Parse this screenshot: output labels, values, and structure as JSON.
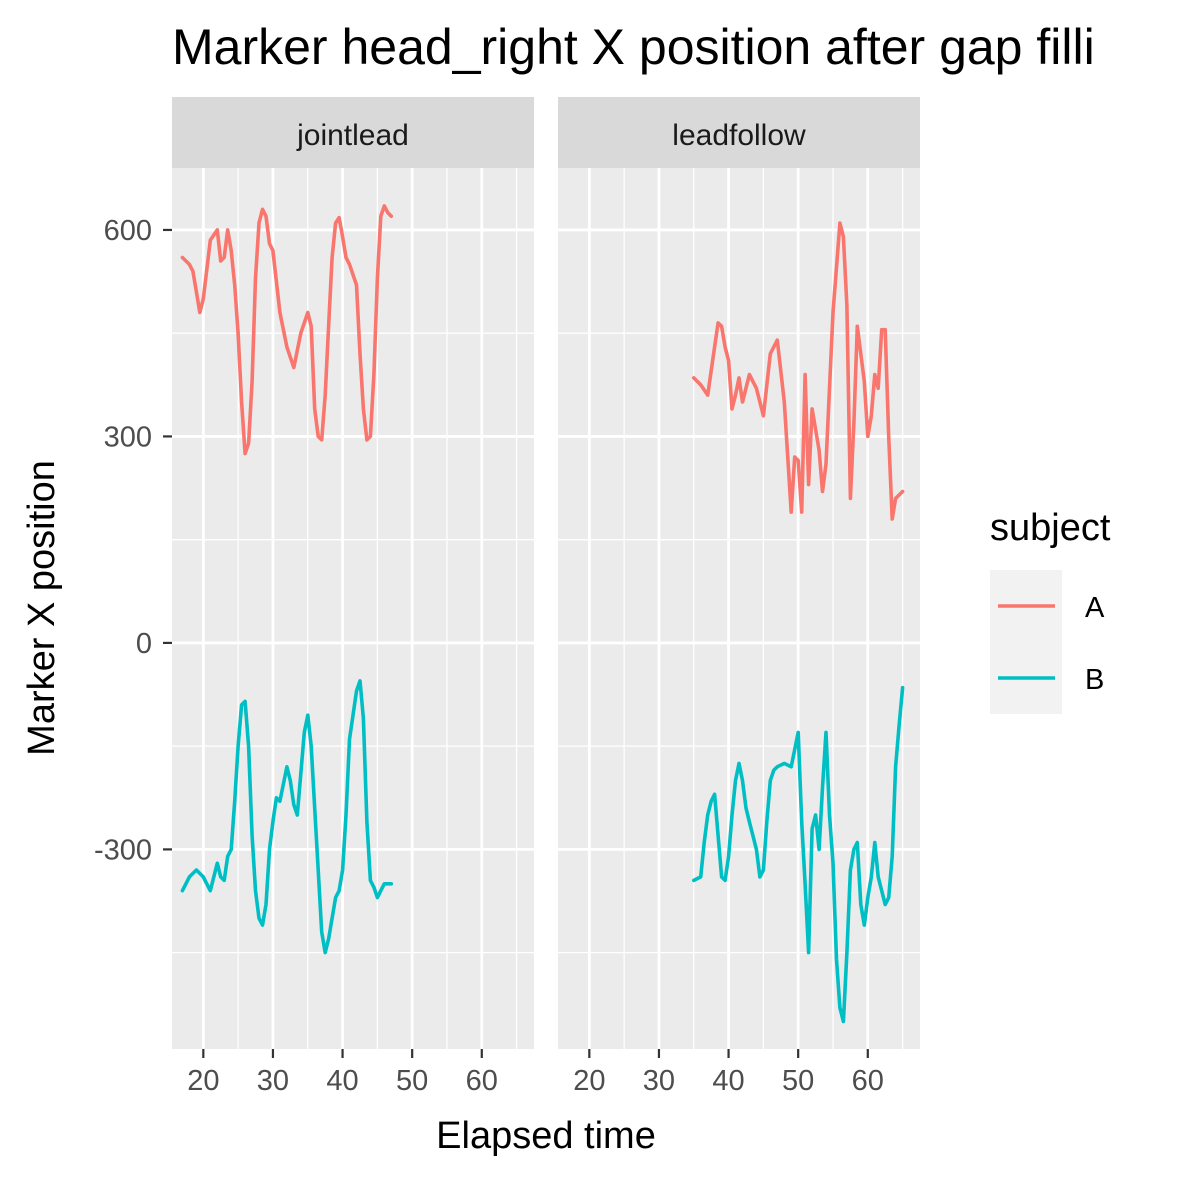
{
  "chart_data": {
    "type": "line",
    "title": "Marker head_right X position after gap filli",
    "xlabel": "Elapsed time",
    "ylabel": "Marker X position",
    "x_ticks": [
      20,
      30,
      40,
      50,
      60
    ],
    "y_ticks": [
      -300,
      0,
      300,
      600
    ],
    "xlim": [
      15.5,
      67.5
    ],
    "ylim": [
      -590,
      690
    ],
    "grid": true,
    "legend": {
      "title": "subject",
      "position": "right",
      "items": [
        {
          "label": "A",
          "color": "#F8766D"
        },
        {
          "label": "B",
          "color": "#00BFC4"
        }
      ]
    },
    "panels": [
      {
        "label": "jointlead",
        "series": [
          {
            "name": "A",
            "color": "#F8766D",
            "x": [
              17,
              18,
              18.5,
              19,
              19.5,
              20,
              21,
              22,
              22.5,
              23,
              23.5,
              24,
              24.5,
              25,
              25.5,
              26,
              26.5,
              27,
              27.5,
              28,
              28.5,
              29,
              29.5,
              30,
              31,
              32,
              33,
              34,
              35,
              35.5,
              36,
              36.5,
              37,
              37.5,
              38,
              38.5,
              39,
              39.5,
              40,
              40.5,
              41,
              42,
              42.5,
              43,
              43.5,
              44,
              44.5,
              45,
              45.5,
              46,
              46.5,
              47
            ],
            "y": [
              560,
              550,
              540,
              510,
              480,
              500,
              585,
              600,
              555,
              560,
              600,
              570,
              520,
              450,
              350,
              275,
              290,
              380,
              530,
              610,
              630,
              620,
              580,
              570,
              480,
              430,
              400,
              450,
              480,
              460,
              340,
              300,
              295,
              360,
              460,
              560,
              610,
              618,
              590,
              560,
              550,
              520,
              420,
              340,
              295,
              300,
              390,
              530,
              620,
              635,
              625,
              620
            ]
          },
          {
            "name": "B",
            "color": "#00BFC4",
            "x": [
              17,
              18,
              19,
              20,
              21,
              22,
              22.5,
              23,
              23.5,
              24,
              24.5,
              25,
              25.5,
              26,
              26.5,
              27,
              27.5,
              28,
              28.5,
              29,
              29.5,
              30,
              30.5,
              31,
              32,
              32.5,
              33,
              33.5,
              34,
              34.5,
              35,
              35.5,
              36,
              36.5,
              37,
              37.5,
              38,
              38.5,
              39,
              39.5,
              40,
              40.5,
              41,
              42,
              42.5,
              43,
              43.5,
              44,
              44.5,
              45,
              45.5,
              46,
              46.5,
              47
            ],
            "y": [
              -360,
              -340,
              -330,
              -340,
              -360,
              -320,
              -340,
              -345,
              -310,
              -300,
              -230,
              -150,
              -90,
              -85,
              -150,
              -280,
              -360,
              -400,
              -410,
              -380,
              -300,
              -260,
              -225,
              -230,
              -180,
              -200,
              -235,
              -250,
              -190,
              -130,
              -105,
              -150,
              -240,
              -330,
              -420,
              -450,
              -430,
              -400,
              -370,
              -360,
              -330,
              -250,
              -140,
              -70,
              -55,
              -110,
              -260,
              -345,
              -355,
              -370,
              -360,
              -350,
              -350,
              -350
            ]
          }
        ]
      },
      {
        "label": "leadfollow",
        "series": [
          {
            "name": "A",
            "color": "#F8766D",
            "x": [
              35,
              36,
              37,
              38,
              38.5,
              39,
              39.5,
              40,
              40.5,
              41,
              41.5,
              42,
              43,
              44,
              45,
              46,
              47,
              48,
              49,
              49.5,
              50,
              50.5,
              51,
              51.5,
              52,
              52.5,
              53,
              53.5,
              54,
              55,
              56,
              56.5,
              57,
              57.5,
              58,
              58.5,
              59,
              59.5,
              60,
              60.5,
              61,
              61.5,
              62,
              62.5,
              63,
              63.5,
              64,
              65
            ],
            "y": [
              385,
              375,
              360,
              430,
              465,
              460,
              430,
              410,
              340,
              360,
              385,
              350,
              390,
              370,
              330,
              420,
              440,
              350,
              190,
              270,
              265,
              190,
              390,
              230,
              340,
              310,
              280,
              220,
              260,
              480,
              610,
              590,
              490,
              210,
              320,
              460,
              420,
              380,
              300,
              330,
              390,
              370,
              455,
              455,
              300,
              180,
              210,
              220
            ]
          },
          {
            "name": "B",
            "color": "#00BFC4",
            "x": [
              35,
              36,
              36.5,
              37,
              37.5,
              38,
              38.5,
              39,
              39.5,
              40,
              40.5,
              41,
              41.5,
              42,
              42.5,
              43,
              43.5,
              44,
              44.5,
              45,
              45.5,
              46,
              46.5,
              47,
              48,
              49,
              50,
              50.5,
              51,
              51.5,
              52,
              52.5,
              53,
              53.5,
              54,
              54.5,
              55,
              55.5,
              56,
              56.5,
              57,
              57.5,
              58,
              58.5,
              59,
              59.5,
              60,
              60.5,
              61,
              61.5,
              62,
              62.5,
              63,
              63.5,
              64,
              64.5,
              65
            ],
            "y": [
              -345,
              -340,
              -290,
              -250,
              -230,
              -220,
              -280,
              -340,
              -345,
              -310,
              -250,
              -200,
              -175,
              -200,
              -240,
              -260,
              -280,
              -300,
              -340,
              -330,
              -260,
              -200,
              -185,
              -180,
              -175,
              -180,
              -130,
              -260,
              -350,
              -450,
              -270,
              -250,
              -300,
              -210,
              -130,
              -250,
              -320,
              -460,
              -530,
              -550,
              -450,
              -330,
              -300,
              -290,
              -380,
              -410,
              -370,
              -340,
              -290,
              -340,
              -360,
              -380,
              -370,
              -310,
              -180,
              -120,
              -65
            ]
          }
        ]
      }
    ]
  }
}
